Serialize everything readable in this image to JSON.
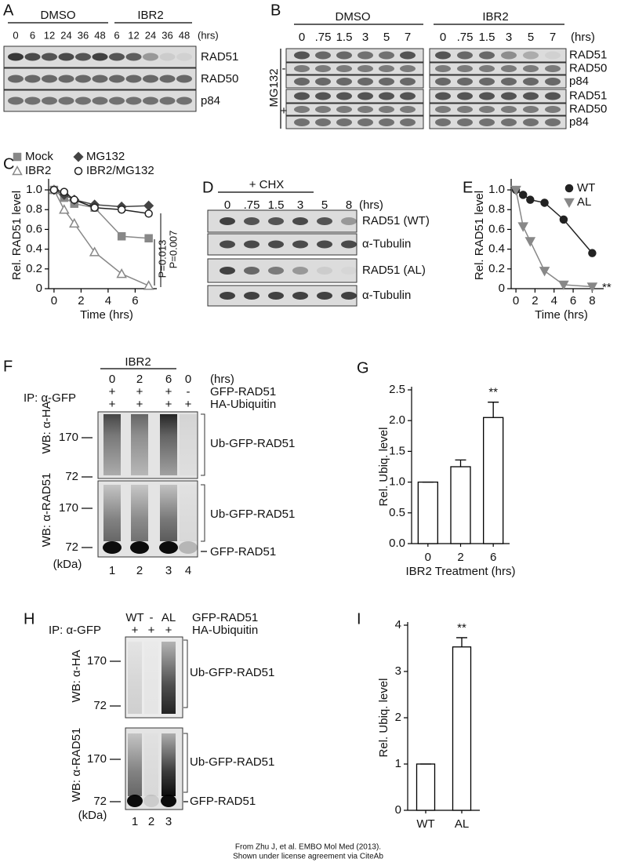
{
  "blots": {
    "A": {
      "letter": "A",
      "groups": [
        "DMSO",
        "IBR2"
      ],
      "lanes": [
        "0",
        "6",
        "12",
        "24",
        "36",
        "48",
        "6",
        "12",
        "24",
        "36",
        "48"
      ],
      "unit": "(hrs)",
      "bands": [
        "RAD51",
        "RAD50",
        "p84"
      ]
    },
    "B": {
      "letter": "B",
      "groups": [
        "DMSO",
        "IBR2"
      ],
      "lanes": [
        "0",
        ".75",
        "1.5",
        "3",
        "5",
        "7",
        "0",
        ".75",
        "1.5",
        "3",
        "5",
        "7"
      ],
      "unit": "(hrs)",
      "treatment": "MG132",
      "signs": [
        "-",
        "+"
      ],
      "bands": [
        "RAD51",
        "RAD50",
        "p84",
        "RAD51",
        "RAD50",
        "p84"
      ]
    },
    "D": {
      "letter": "D",
      "group": "+ CHX",
      "lanes": [
        "0",
        ".75",
        "1.5",
        "3",
        "5",
        "8"
      ],
      "unit": "(hrs)",
      "bands": [
        "RAD51 (WT)",
        "α-Tubulin",
        "RAD51 (AL)",
        "α-Tubulin"
      ]
    },
    "F": {
      "letter": "F",
      "group": "IBR2",
      "lanes": [
        "0",
        "2",
        "6",
        "0"
      ],
      "unit": "(hrs)",
      "ip": "IP: α-GFP",
      "rows": [
        {
          "label": "GFP-RAD51",
          "signs": [
            "+",
            "+",
            "+",
            "-"
          ]
        },
        {
          "label": "HA-Ubiquitin",
          "signs": [
            "+",
            "+",
            "+",
            "+"
          ]
        }
      ],
      "wb": [
        "WB: α-HA",
        "WB: α-RAD51"
      ],
      "mw": [
        "170",
        "72",
        "170",
        "72"
      ],
      "mw_unit": "(kDa)",
      "bands": [
        "Ub-GFP-RAD51",
        "Ub-GFP-RAD51",
        "GFP-RAD51"
      ],
      "lane_numbers": [
        "1",
        "2",
        "3",
        "4"
      ]
    },
    "H": {
      "letter": "H",
      "lanes": [
        "WT",
        "-",
        "AL"
      ],
      "ip": "IP: α-GFP",
      "rows": [
        {
          "label": "GFP-RAD51"
        },
        {
          "label": "HA-Ubiquitin",
          "signs": [
            "+",
            "+",
            "+"
          ]
        }
      ],
      "wb": [
        "WB: α-HA",
        "WB: α-RAD51"
      ],
      "mw": [
        "170",
        "72",
        "170",
        "72"
      ],
      "mw_unit": "(kDa)",
      "bands": [
        "Ub-GFP-RAD51",
        "Ub-GFP-RAD51",
        "GFP-RAD51"
      ],
      "lane_numbers": [
        "1",
        "2",
        "3"
      ]
    }
  },
  "chart_data": [
    {
      "type": "line",
      "panel": "C",
      "xlabel": "Time (hrs)",
      "ylabel": "Rel. RAD51 level",
      "x": [
        0,
        0.75,
        1.5,
        3,
        5,
        7
      ],
      "xlim": [
        -0.4,
        7.6
      ],
      "xticks": [
        0,
        2,
        4,
        6
      ],
      "ylim": [
        0,
        1.08
      ],
      "yticks": [
        0,
        0.2,
        0.4,
        0.6,
        0.8,
        {
          "value": 1,
          "label": "1.0"
        }
      ],
      "series": [
        {
          "name": "Mock",
          "color": "#888888",
          "marker": "square",
          "filled": true,
          "values": [
            1.0,
            0.92,
            0.86,
            0.82,
            0.53,
            0.51
          ]
        },
        {
          "name": "MG132",
          "color": "#444444",
          "marker": "diamond",
          "filled": true,
          "values": [
            1.0,
            0.95,
            0.9,
            0.85,
            0.83,
            0.84
          ]
        },
        {
          "name": "IBR2",
          "color": "#888888",
          "marker": "triangle-up",
          "filled": false,
          "values": [
            1.0,
            0.8,
            0.66,
            0.37,
            0.15,
            0.03
          ]
        },
        {
          "name": "IBR2/MG132",
          "color": "#222222",
          "marker": "circle",
          "filled": false,
          "values": [
            1.0,
            0.98,
            0.9,
            0.82,
            0.8,
            0.76
          ]
        }
      ],
      "annotations": [
        "P=0.007",
        "P=0.013"
      ]
    },
    {
      "type": "line",
      "panel": "E",
      "xlabel": "Time (hrs)",
      "ylabel": "Rel. RAD51 level",
      "x": [
        0,
        0.75,
        1.5,
        3,
        5,
        8
      ],
      "xlim": [
        -0.5,
        9.2
      ],
      "xticks": [
        0,
        2,
        4,
        6,
        8
      ],
      "ylim": [
        0,
        1.08
      ],
      "yticks": [
        0,
        0.2,
        0.4,
        0.6,
        0.8,
        {
          "value": 1,
          "label": "1.0"
        }
      ],
      "series": [
        {
          "name": "WT",
          "color": "#222222",
          "marker": "circle",
          "filled": true,
          "values": [
            1.0,
            0.95,
            0.9,
            0.87,
            0.7,
            0.36
          ]
        },
        {
          "name": "AL",
          "color": "#888888",
          "marker": "triangle-down",
          "filled": true,
          "values": [
            1.0,
            0.63,
            0.48,
            0.18,
            0.04,
            0.02
          ]
        }
      ],
      "annotations": [
        "**"
      ]
    },
    {
      "type": "bar",
      "panel": "G",
      "xlabel": "IBR2 Treatment (hrs)",
      "ylabel": "Rel. Ubiq. level",
      "color": "#ffffff",
      "categories": [
        "0",
        "2",
        "6"
      ],
      "values": [
        1.0,
        1.25,
        2.05
      ],
      "errors": [
        0,
        0.11,
        0.25
      ],
      "ylim": [
        0,
        2.5
      ],
      "yticks": [
        {
          "value": 0,
          "label": "0.0"
        },
        0.5,
        {
          "value": 1,
          "label": "1.0"
        },
        1.5,
        {
          "value": 2,
          "label": "2.0"
        },
        2.5
      ],
      "annotations": [
        "**"
      ]
    },
    {
      "type": "bar",
      "panel": "I",
      "ylabel": "Rel. Ubiq. level",
      "color": "#ffffff",
      "categories": [
        "WT",
        "AL"
      ],
      "values": [
        1,
        3.53
      ],
      "errors": [
        0,
        0.2
      ],
      "ylim": [
        0,
        4
      ],
      "yticks": [
        0,
        1,
        2,
        3,
        4
      ],
      "annotations": [
        "**"
      ]
    }
  ],
  "credit": [
    "From Zhu J, et al. EMBO Mol Med (2013).",
    "Shown under license agreement via CiteAb"
  ]
}
